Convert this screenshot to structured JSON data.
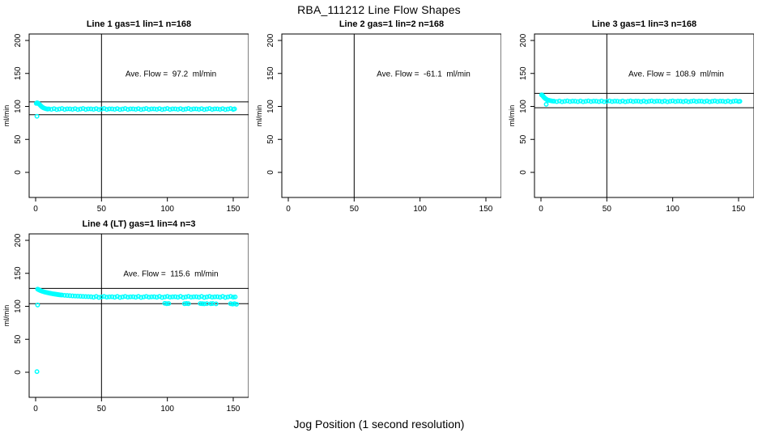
{
  "figure": {
    "title": "RBA_111212  Line Flow Shapes",
    "xlabel": "Jog Position (1 second resolution)",
    "ylabel": "ml/min"
  },
  "colors": {
    "points": "#00FFFF",
    "axis": "#000000",
    "background": "#FFFFFF"
  },
  "chart_data": {
    "type": "scatter",
    "title": "RBA_111212  Line Flow Shapes",
    "xlabel": "Jog Position (1 second resolution)",
    "ylabel": "ml/min",
    "x_ticks": [
      0,
      50,
      100,
      150
    ],
    "y_ticks": [
      0,
      50,
      100,
      150,
      200
    ],
    "xlim": [
      -5,
      161
    ],
    "ylim": [
      -38,
      211
    ],
    "grid": false,
    "vline_x": 50,
    "point_color": "#00FFFF",
    "panels": [
      {
        "title": "Line 1 gas=1 lin=1 n=168",
        "n": 168,
        "ave_flow": 97.2,
        "ave_label": "Ave. Flow =  97.2  ml/min",
        "ref_lines": [
          106.9,
          87.5
        ],
        "points": [
          [
            0.5,
            104.5
          ],
          [
            1,
            105.5
          ],
          [
            1.5,
            105.2
          ],
          [
            2,
            104.6
          ],
          [
            2.5,
            103.8
          ],
          [
            3,
            102.8
          ],
          [
            3.5,
            101.8
          ],
          [
            4,
            100.8
          ],
          [
            4.5,
            99.8
          ],
          [
            5,
            99
          ],
          [
            5.5,
            98.4
          ],
          [
            6,
            97.8
          ],
          [
            7,
            97
          ],
          [
            8,
            96.4
          ],
          [
            9,
            96
          ],
          [
            1,
            85
          ],
          [
            151,
            96.2
          ]
        ],
        "band": {
          "x_start": 10,
          "x_step": 2,
          "y": [
            96.2,
            95.6,
            96.6,
            95.3,
            96.0,
            96.9,
            95.5,
            96.3,
            96.2,
            95.6,
            96.6,
            95.3,
            96.0,
            96.9,
            95.5,
            96.3,
            96.2,
            95.6,
            96.6,
            95.3,
            96.0,
            96.9,
            95.5,
            96.3,
            96.2,
            95.6,
            96.6,
            95.3,
            96.0,
            96.9,
            95.5,
            96.3,
            96.2,
            95.6,
            96.6,
            95.3,
            96.0,
            96.9,
            95.5,
            96.3,
            96.2,
            95.6,
            96.6,
            95.3,
            96.0,
            96.9,
            95.5,
            96.3,
            96.2,
            95.6,
            96.6,
            95.3,
            96.0,
            96.9,
            95.5,
            96.3,
            96.2,
            95.6,
            96.6,
            95.3,
            96.0,
            96.9,
            95.5,
            96.3,
            96.2,
            95.6,
            96.6,
            95.3,
            96.0,
            96.9,
            95.5
          ]
        }
      },
      {
        "title": "Line 2 gas=1 lin=2 n=168",
        "n": 168,
        "ave_flow": -61.1,
        "ave_label": "Ave. Flow =  -61.1  ml/min",
        "ref_lines": [],
        "points": [],
        "band": {
          "x_start": 0,
          "x_step": 2,
          "y": []
        }
      },
      {
        "title": "Line 3 gas=1 lin=3 n=168",
        "n": 168,
        "ave_flow": 108.9,
        "ave_label": "Ave. Flow =  108.9  ml/min",
        "ref_lines": [
          119.8,
          98.0
        ],
        "points": [
          [
            0.5,
            117.5
          ],
          [
            1,
            117
          ],
          [
            1.5,
            115.8
          ],
          [
            2,
            114.5
          ],
          [
            2.5,
            113.4
          ],
          [
            3,
            112.4
          ],
          [
            3.5,
            111.6
          ],
          [
            4,
            110.9
          ],
          [
            4.5,
            110.3
          ],
          [
            5,
            109.8
          ],
          [
            6,
            109.2
          ],
          [
            7,
            108.8
          ],
          [
            8,
            108.4
          ],
          [
            9,
            108.1
          ],
          [
            4,
            103.2
          ],
          [
            151,
            107.8
          ]
        ],
        "band": {
          "x_start": 10,
          "x_step": 2,
          "y": [
            107.9,
            107.3,
            108.2,
            107.1,
            107.7,
            108.4,
            107.4,
            108.0,
            107.9,
            107.3,
            108.2,
            107.1,
            107.7,
            108.4,
            107.4,
            108.0,
            107.9,
            107.3,
            108.2,
            107.1,
            107.7,
            108.4,
            107.4,
            108.0,
            107.9,
            107.3,
            108.2,
            107.1,
            107.7,
            108.4,
            107.4,
            108.0,
            107.9,
            107.3,
            108.2,
            107.1,
            107.7,
            108.4,
            107.4,
            108.0,
            107.9,
            107.3,
            108.2,
            107.1,
            107.7,
            108.4,
            107.4,
            108.0,
            107.9,
            107.3,
            108.2,
            107.1,
            107.7,
            108.4,
            107.4,
            108.0,
            107.9,
            107.3,
            108.2,
            107.1,
            107.7,
            108.4,
            107.4,
            108.0,
            107.9,
            107.3,
            108.2,
            107.1,
            107.7,
            108.4,
            107.4
          ]
        }
      },
      {
        "title": "Line 4 (LT) gas=1 lin=4 n=3",
        "n": 3,
        "ave_flow": 115.6,
        "ave_label": "Ave. Flow =  115.6  ml/min",
        "ref_lines": [
          127.2,
          104.0
        ],
        "points": [
          [
            1.5,
            126
          ],
          [
            2,
            125.5
          ],
          [
            2.5,
            125
          ],
          [
            3,
            124.5
          ],
          [
            3.5,
            124
          ],
          [
            4,
            123.5
          ],
          [
            5,
            122.8
          ],
          [
            6,
            122.2
          ],
          [
            7,
            121.6
          ],
          [
            8,
            121.1
          ],
          [
            9,
            120.6
          ],
          [
            10,
            120.2
          ],
          [
            11,
            119.8
          ],
          [
            12,
            119.4
          ],
          [
            13,
            119
          ],
          [
            14,
            118.7
          ],
          [
            15,
            118.4
          ],
          [
            16,
            118.1
          ],
          [
            17,
            117.8
          ],
          [
            18,
            117.5
          ],
          [
            19,
            117.3
          ],
          [
            20,
            117.1
          ],
          [
            22,
            116.7
          ],
          [
            24,
            116.4
          ],
          [
            26,
            116.1
          ],
          [
            28,
            115.8
          ],
          [
            30,
            115.6
          ],
          [
            32,
            115.4
          ],
          [
            34,
            115.2
          ],
          [
            36,
            115
          ],
          [
            38,
            114.8
          ],
          [
            40,
            114.7
          ],
          [
            98,
            104.5
          ],
          [
            99.5,
            104
          ],
          [
            101,
            104.2
          ],
          [
            113,
            104
          ],
          [
            114.5,
            104.3
          ],
          [
            116,
            104
          ],
          [
            125,
            104.2
          ],
          [
            126.5,
            104
          ],
          [
            128,
            103.8
          ],
          [
            130,
            104.1
          ],
          [
            133,
            104
          ],
          [
            134.5,
            104.2
          ],
          [
            137,
            103.8
          ],
          [
            148,
            104
          ],
          [
            149.5,
            103.4
          ],
          [
            151,
            104
          ],
          [
            152.5,
            103.2
          ],
          [
            1.5,
            102
          ],
          [
            1,
            1
          ],
          [
            151.5,
            114.2
          ]
        ],
        "band": {
          "x_start": 42,
          "x_step": 2,
          "y": [
            114.5,
            113.8,
            114.9,
            113.5,
            114.2,
            115.0,
            113.9,
            114.4,
            114.5,
            113.8,
            114.9,
            113.5,
            114.2,
            115.0,
            113.9,
            114.4,
            114.5,
            113.8,
            114.9,
            113.5,
            114.2,
            115.0,
            113.9,
            114.4,
            114.5,
            113.8,
            114.9,
            113.5,
            114.2,
            115.0,
            113.9,
            114.4,
            114.5,
            113.8,
            114.9,
            113.5,
            114.2,
            115.0,
            113.9,
            114.4,
            114.5,
            113.8,
            114.9,
            113.5,
            114.2,
            115.0,
            113.9,
            114.4,
            114.5,
            113.8,
            114.9,
            113.5,
            114.2,
            115.0,
            113.9
          ]
        }
      }
    ]
  }
}
